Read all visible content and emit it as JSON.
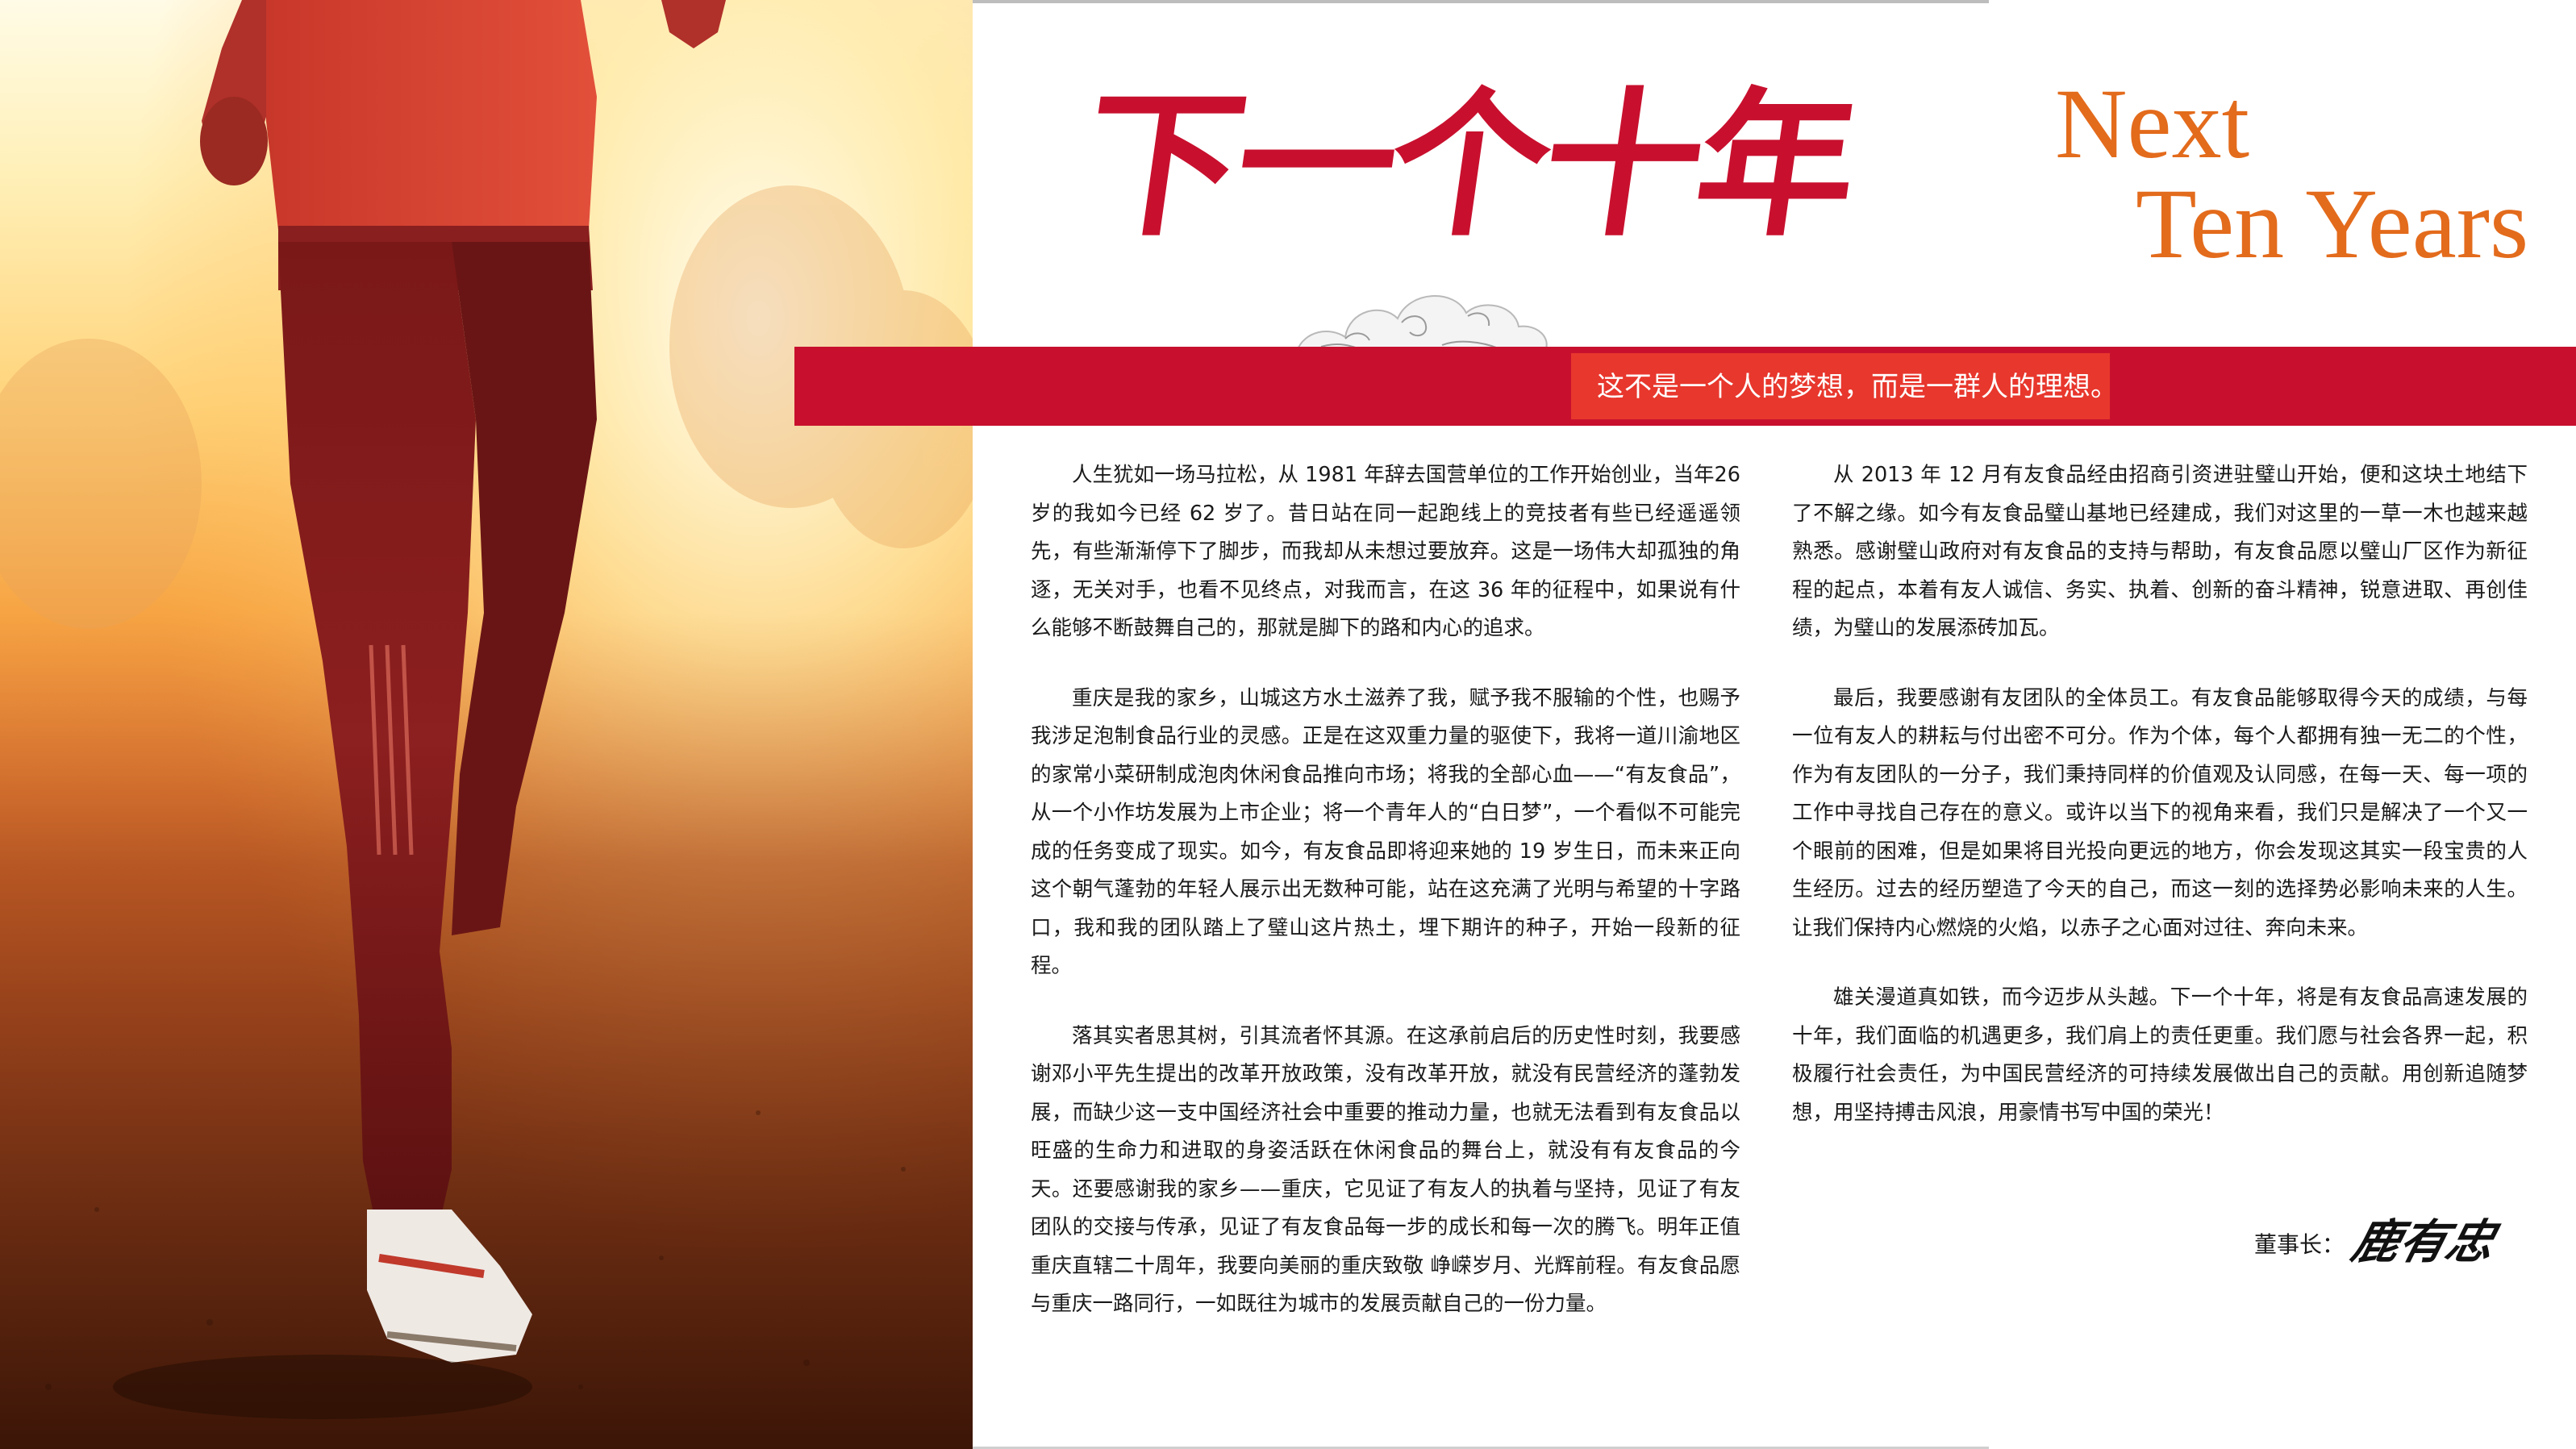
{
  "header": {
    "title_cn": "下一个十年",
    "title_en_line1": "Next",
    "title_en_line2": "Ten Years"
  },
  "banner": {
    "text": "这不是一个人的梦想，而是一群人的理想。"
  },
  "left_column": {
    "paragraphs": [
      "人生犹如一场马拉松，从 1981 年辞去国营单位的工作开始创业，当年26 岁的我如今已经 62 岁了。昔日站在同一起跑线上的竞技者有些已经遥遥领先，有些渐渐停下了脚步，而我却从未想过要放弃。这是一场伟大却孤独的角逐，无关对手，也看不见终点，对我而言，在这 36 年的征程中，如果说有什么能够不断鼓舞自己的，那就是脚下的路和内心的追求。",
      "重庆是我的家乡，山城这方水土滋养了我，赋予我不服输的个性，也赐予我涉足泡制食品行业的灵感。正是在这双重力量的驱使下，我将一道川渝地区的家常小菜研制成泡肉休闲食品推向市场；将我的全部心血——“有友食品”，从一个小作坊发展为上市企业；将一个青年人的“白日梦”，一个看似不可能完成的任务变成了现实。如今，有友食品即将迎来她的 19 岁生日，而未来正向这个朝气蓬勃的年轻人展示出无数种可能，站在这充满了光明与希望的十字路口，我和我的团队踏上了璧山这片热土，埋下期许的种子，开始一段新的征程。",
      "落其实者思其树，引其流者怀其源。在这承前启后的历史性时刻，我要感谢邓小平先生提出的改革开放政策，没有改革开放，就没有民营经济的蓬勃发展，而缺少这一支中国经济社会中重要的推动力量，也就无法看到有友食品以旺盛的生命力和进取的身姿活跃在休闲食品的舞台上，就没有有友食品的今天。还要感谢我的家乡——重庆，它见证了有友人的执着与坚持，见证了有友团队的交接与传承，见证了有友食品每一步的成长和每一次的腾飞。明年正值重庆直辖二十周年，我要向美丽的重庆致敬 峥嵘岁月、光辉前程。有友食品愿与重庆一路同行，一如既往为城市的发展贡献自己的一份力量。"
    ]
  },
  "right_column": {
    "paragraphs": [
      "从 2013 年 12 月有友食品经由招商引资进驻璧山开始，便和这块土地结下了不解之缘。如今有友食品璧山基地已经建成，我们对这里的一草一木也越来越熟悉。感谢璧山政府对有友食品的支持与帮助，有友食品愿以璧山厂区作为新征程的起点，本着有友人诚信、务实、执着、创新的奋斗精神，锐意进取、再创佳绩，为璧山的发展添砖加瓦。",
      "最后，我要感谢有友团队的全体员工。有友食品能够取得今天的成绩，与每一位有友人的耕耘与付出密不可分。作为个体，每个人都拥有独一无二的个性，作为有友团队的一分子，我们秉持同样的价值观及认同感，在每一天、每一项的工作中寻找自己存在的意义。或许以当下的视角来看，我们只是解决了一个又一个眼前的困难，但是如果将目光投向更远的地方，你会发现这其实一段宝贵的人生经历。过去的经历塑造了今天的自己，而这一刻的选择势必影响未来的人生。让我们保持内心燃烧的火焰，以赤子之心面对过往、奔向未来。",
      "雄关漫道真如铁，而今迈步从头越。下一个十年，将是有友食品高速发展的十年，我们面临的机遇更多，我们肩上的责任更重。我们愿与社会各界一起，积极履行社会责任，为中国民营经济的可持续发展做出自己的贡献。用创新追随梦想，用坚持搏击风浪，用豪情书写中国的荣光！"
    ]
  },
  "signature": {
    "label": "董事长：",
    "name": "鹿有忠"
  },
  "colors": {
    "brand_red": "#c8102e",
    "banner_highlight": "#e8372d",
    "english_title_orange": "#e36b1c"
  },
  "icons": {
    "cloud": "auspicious-cloud-icon",
    "photo": "runner-photo"
  }
}
